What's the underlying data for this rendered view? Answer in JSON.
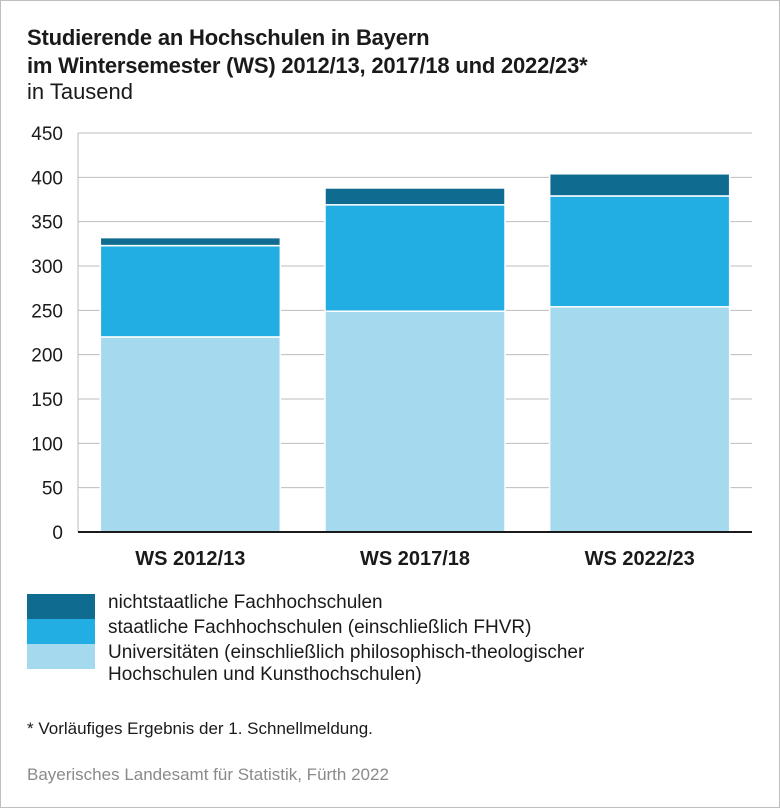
{
  "title_line1": "Studierende an Hochschulen in Bayern",
  "title_line2": "im Wintersemester (WS) 2012/13, 2017/18 und 2022/23*",
  "subtitle": "in Tausend",
  "footnote": "*  Vorläufiges Ergebnis der 1. Schnellmeldung.",
  "source": "Bayerisches Landesamt für Statistik, Fürth 2022",
  "chart_data": {
    "type": "bar",
    "stacked": true,
    "title": "Studierende an Hochschulen in Bayern im Wintersemester (WS) 2012/13, 2017/18 und 2022/23*",
    "subtitle": "in Tausend",
    "categories": [
      "WS 2012/13",
      "WS 2017/18",
      "WS 2022/23"
    ],
    "series": [
      {
        "name": "Universitäten (einschließlich philosophisch-theologischer Hochschulen und Kunsthochschulen)",
        "color": "#a4d9ee",
        "values": [
          220,
          249,
          254
        ]
      },
      {
        "name": "staatliche Fachhochschulen (einschließlich FHVR)",
        "color": "#23aee3",
        "values": [
          103,
          120,
          125
        ]
      },
      {
        "name": "nichtstaatliche Fachhochschulen",
        "color": "#0f6b8f",
        "values": [
          9,
          19,
          25
        ]
      }
    ],
    "ylim": [
      0,
      450
    ],
    "yticks": [
      0,
      50,
      100,
      150,
      200,
      250,
      300,
      350,
      400,
      450
    ],
    "grid": true,
    "legend": "bottom"
  },
  "legend_items": [
    {
      "label": "nichtstaatliche Fachhochschulen",
      "color": "#0f6b8f"
    },
    {
      "label": "staatliche Fachhochschulen (einschließlich FHVR)",
      "color": "#23aee3"
    },
    {
      "label": "Universitäten (einschließlich philosophisch-theologischer Hochschulen und Kunsthochschulen)",
      "color": "#a4d9ee"
    }
  ]
}
